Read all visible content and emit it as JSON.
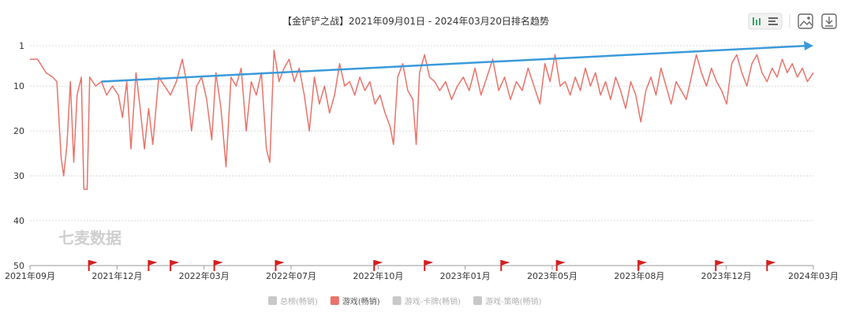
{
  "title": "【金铲铲之战】2021年09月01日 - 2024年03月20日排名趋势",
  "watermark": "七麦数据",
  "toolbar": {
    "icons": [
      "bar-list-toggle-icon",
      "save-image-icon",
      "download-icon"
    ]
  },
  "colors": {
    "series": "#e8736a",
    "trend": "#3a9ad9",
    "flag": "#d41f1f",
    "legend_inactive": "#c8c8c8",
    "legend_active": "#e8736a"
  },
  "legend": [
    {
      "label": "总榜(畅销)",
      "active": false
    },
    {
      "label": "游戏(畅销)",
      "active": true
    },
    {
      "label": "游戏-卡牌(畅销)",
      "active": false
    },
    {
      "label": "游戏-策略(畅销)",
      "active": false
    }
  ],
  "chart_data": {
    "type": "line",
    "title": "【金铲铲之战】2021年09月01日 - 2024年03月20日排名趋势",
    "y_reversed": true,
    "ylim": [
      1,
      50
    ],
    "yticks": [
      "1",
      "10",
      "20",
      "30",
      "40",
      "50"
    ],
    "xlim": [
      "2021-09-01",
      "2024-03-20"
    ],
    "xticks": [
      "2021年09月",
      "2021年12月",
      "2022年03月",
      "2022年07月",
      "2022年10月",
      "2023年01月",
      "2023年05月",
      "2023年08月",
      "2023年12月",
      "2024年03月"
    ],
    "grid": true,
    "legend_position": "bottom",
    "series": [
      {
        "name": "游戏(畅销)",
        "points": [
          [
            "2021-09-01",
            4
          ],
          [
            "2021-09-10",
            4
          ],
          [
            "2021-09-20",
            7
          ],
          [
            "2021-09-28",
            8
          ],
          [
            "2021-10-03",
            9
          ],
          [
            "2021-10-08",
            26
          ],
          [
            "2021-10-11",
            30
          ],
          [
            "2021-10-15",
            23
          ],
          [
            "2021-10-19",
            9
          ],
          [
            "2021-10-23",
            27
          ],
          [
            "2021-10-27",
            12
          ],
          [
            "2021-11-01",
            8
          ],
          [
            "2021-11-04",
            33
          ],
          [
            "2021-11-08",
            33
          ],
          [
            "2021-11-11",
            8
          ],
          [
            "2021-11-18",
            10
          ],
          [
            "2021-11-25",
            9
          ],
          [
            "2021-12-01",
            12
          ],
          [
            "2021-12-08",
            10
          ],
          [
            "2021-12-15",
            12
          ],
          [
            "2021-12-20",
            17
          ],
          [
            "2021-12-25",
            9
          ],
          [
            "2021-12-30",
            24
          ],
          [
            "2022-01-05",
            7
          ],
          [
            "2022-01-10",
            15
          ],
          [
            "2022-01-15",
            24
          ],
          [
            "2022-01-20",
            15
          ],
          [
            "2022-01-25",
            23
          ],
          [
            "2022-02-01",
            8
          ],
          [
            "2022-02-08",
            10
          ],
          [
            "2022-02-15",
            12
          ],
          [
            "2022-02-22",
            9
          ],
          [
            "2022-03-01",
            4
          ],
          [
            "2022-03-06",
            9
          ],
          [
            "2022-03-12",
            20
          ],
          [
            "2022-03-18",
            10
          ],
          [
            "2022-03-24",
            8
          ],
          [
            "2022-03-30",
            13
          ],
          [
            "2022-04-05",
            22
          ],
          [
            "2022-04-10",
            7
          ],
          [
            "2022-04-16",
            15
          ],
          [
            "2022-04-22",
            28
          ],
          [
            "2022-04-28",
            8
          ],
          [
            "2022-05-04",
            10
          ],
          [
            "2022-05-10",
            6
          ],
          [
            "2022-05-16",
            20
          ],
          [
            "2022-05-22",
            9
          ],
          [
            "2022-05-28",
            12
          ],
          [
            "2022-06-03",
            7
          ],
          [
            "2022-06-09",
            24
          ],
          [
            "2022-06-13",
            27
          ],
          [
            "2022-06-18",
            2
          ],
          [
            "2022-06-24",
            9
          ],
          [
            "2022-06-30",
            6
          ],
          [
            "2022-07-06",
            4
          ],
          [
            "2022-07-12",
            9
          ],
          [
            "2022-07-18",
            6
          ],
          [
            "2022-07-24",
            12
          ],
          [
            "2022-07-30",
            20
          ],
          [
            "2022-08-05",
            8
          ],
          [
            "2022-08-11",
            14
          ],
          [
            "2022-08-17",
            10
          ],
          [
            "2022-08-23",
            16
          ],
          [
            "2022-08-29",
            12
          ],
          [
            "2022-09-04",
            5
          ],
          [
            "2022-09-10",
            10
          ],
          [
            "2022-09-16",
            9
          ],
          [
            "2022-09-22",
            12
          ],
          [
            "2022-09-28",
            8
          ],
          [
            "2022-10-04",
            11
          ],
          [
            "2022-10-10",
            9
          ],
          [
            "2022-10-16",
            14
          ],
          [
            "2022-10-22",
            12
          ],
          [
            "2022-10-28",
            16
          ],
          [
            "2022-11-03",
            19
          ],
          [
            "2022-11-07",
            23
          ],
          [
            "2022-11-12",
            8
          ],
          [
            "2022-11-18",
            5
          ],
          [
            "2022-11-24",
            11
          ],
          [
            "2022-11-30",
            13
          ],
          [
            "2022-12-04",
            23
          ],
          [
            "2022-12-08",
            7
          ],
          [
            "2022-12-14",
            3
          ],
          [
            "2022-12-20",
            8
          ],
          [
            "2022-12-26",
            9
          ],
          [
            "2023-01-01",
            11
          ],
          [
            "2023-01-08",
            9
          ],
          [
            "2023-01-15",
            13
          ],
          [
            "2023-01-22",
            10
          ],
          [
            "2023-01-29",
            8
          ],
          [
            "2023-02-05",
            11
          ],
          [
            "2023-02-12",
            6
          ],
          [
            "2023-02-19",
            12
          ],
          [
            "2023-02-26",
            8
          ],
          [
            "2023-03-05",
            4
          ],
          [
            "2023-03-12",
            11
          ],
          [
            "2023-03-19",
            8
          ],
          [
            "2023-03-26",
            13
          ],
          [
            "2023-04-02",
            9
          ],
          [
            "2023-04-09",
            11
          ],
          [
            "2023-04-16",
            6
          ],
          [
            "2023-04-23",
            10
          ],
          [
            "2023-04-30",
            14
          ],
          [
            "2023-05-06",
            5
          ],
          [
            "2023-05-12",
            9
          ],
          [
            "2023-05-18",
            3
          ],
          [
            "2023-05-24",
            10
          ],
          [
            "2023-05-30",
            9
          ],
          [
            "2023-06-05",
            12
          ],
          [
            "2023-06-11",
            8
          ],
          [
            "2023-06-17",
            11
          ],
          [
            "2023-06-23",
            6
          ],
          [
            "2023-06-29",
            10
          ],
          [
            "2023-07-05",
            7
          ],
          [
            "2023-07-11",
            12
          ],
          [
            "2023-07-17",
            9
          ],
          [
            "2023-07-23",
            13
          ],
          [
            "2023-07-29",
            8
          ],
          [
            "2023-08-04",
            11
          ],
          [
            "2023-08-10",
            15
          ],
          [
            "2023-08-16",
            9
          ],
          [
            "2023-08-22",
            12
          ],
          [
            "2023-08-28",
            18
          ],
          [
            "2023-09-03",
            11
          ],
          [
            "2023-09-09",
            8
          ],
          [
            "2023-09-15",
            12
          ],
          [
            "2023-09-21",
            6
          ],
          [
            "2023-09-27",
            10
          ],
          [
            "2023-10-03",
            14
          ],
          [
            "2023-10-09",
            9
          ],
          [
            "2023-10-15",
            11
          ],
          [
            "2023-10-21",
            13
          ],
          [
            "2023-10-27",
            8
          ],
          [
            "2023-11-02",
            3
          ],
          [
            "2023-11-08",
            7
          ],
          [
            "2023-11-14",
            10
          ],
          [
            "2023-11-20",
            6
          ],
          [
            "2023-11-26",
            9
          ],
          [
            "2023-12-02",
            11
          ],
          [
            "2023-12-08",
            14
          ],
          [
            "2023-12-14",
            5
          ],
          [
            "2023-12-20",
            3
          ],
          [
            "2023-12-26",
            7
          ],
          [
            "2024-01-01",
            10
          ],
          [
            "2024-01-07",
            5
          ],
          [
            "2024-01-13",
            3
          ],
          [
            "2024-01-19",
            7
          ],
          [
            "2024-01-25",
            9
          ],
          [
            "2024-01-31",
            6
          ],
          [
            "2024-02-06",
            8
          ],
          [
            "2024-02-12",
            4
          ],
          [
            "2024-02-18",
            7
          ],
          [
            "2024-02-24",
            5
          ],
          [
            "2024-03-01",
            8
          ],
          [
            "2024-03-07",
            6
          ],
          [
            "2024-03-13",
            9
          ],
          [
            "2024-03-20",
            7
          ]
        ]
      },
      {
        "name": "trend",
        "points": [
          [
            "2021-11-25",
            9
          ],
          [
            "2024-03-20",
            1
          ]
        ]
      }
    ],
    "event_flags": [
      "2021-11-10",
      "2022-01-20",
      "2022-02-15",
      "2022-04-08",
      "2022-06-20",
      "2022-10-15",
      "2022-12-14",
      "2023-03-15",
      "2023-05-20",
      "2023-08-25",
      "2023-11-25",
      "2024-01-25"
    ]
  }
}
